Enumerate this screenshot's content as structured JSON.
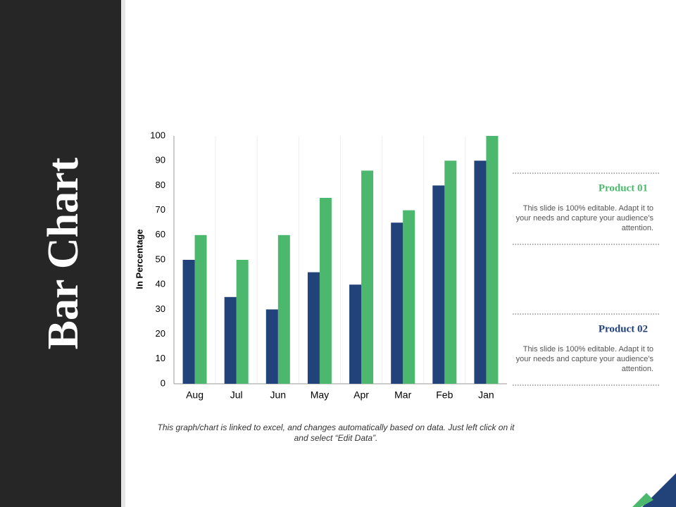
{
  "slide": {
    "title": "Bar Chart",
    "footnote": "This graph/chart is linked to excel, and changes automatically based on data. Just left click on it and select “Edit Data”."
  },
  "chart_data": {
    "type": "bar",
    "y_label": "In Percentage",
    "categories": [
      "Aug",
      "Jul",
      "Jun",
      "May",
      "Apr",
      "Mar",
      "Feb",
      "Jan"
    ],
    "series": [
      {
        "name": "Product 01",
        "color": "#4cb86e",
        "values": [
          60,
          50,
          60,
          75,
          86,
          70,
          90,
          100
        ],
        "description": "This slide is 100% editable. Adapt it to your needs and capture your audience's attention."
      },
      {
        "name": "Product 02",
        "color": "#22427a",
        "values": [
          50,
          35,
          30,
          45,
          40,
          65,
          80,
          90
        ],
        "description": "This slide is 100% editable. Adapt it to your needs and capture your audience's attention."
      }
    ],
    "ylim": [
      0,
      100
    ],
    "yticks": [
      0,
      10,
      20,
      30,
      40,
      50,
      60,
      70,
      80,
      90,
      100
    ],
    "grid": true
  }
}
